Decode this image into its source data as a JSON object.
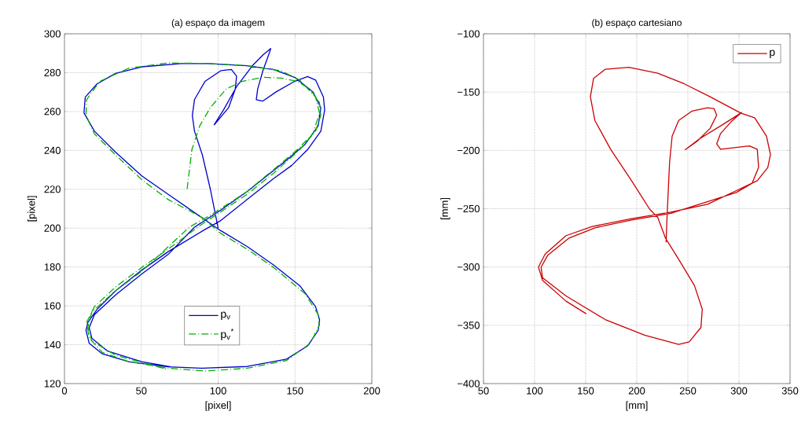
{
  "chart_data": [
    {
      "type": "line",
      "title": "(a) espaço da imagem",
      "xlabel": "[pixel]",
      "ylabel": "[pixel]",
      "xlim": [
        0,
        200
      ],
      "ylim": [
        120,
        300
      ],
      "xticks": [
        0,
        50,
        100,
        150,
        200
      ],
      "yticks": [
        120,
        140,
        160,
        180,
        200,
        220,
        240,
        260,
        280,
        300
      ],
      "grid": true,
      "legend": "bottom",
      "series": [
        {
          "name": "p$_{v}$",
          "color": "#0000cc",
          "line_style": "solid",
          "x": [
            100,
            94.9,
            89.7,
            84.6,
            83.2,
            84.6,
            91.4,
            101.7,
            108.6,
            112,
            111.1,
            106.8,
            98.3,
            97.4,
            103.4,
            112,
            122.3,
            129.1,
            134.2,
            133.4,
            129.1,
            125.7,
            124.8,
            129.1,
            137.7,
            149.7,
            158.2,
            163.4,
            168.5,
            169.3,
            166.8,
            158.2,
            147.9,
            136,
            118.8,
            101.7,
            89.7,
            67.5,
            50.3,
            33.2,
            21.2,
            15.2,
            14,
            16.1,
            24.7,
            41.8,
            67.5,
            89.7,
            118.8,
            144.5,
            158.2,
            165.1,
            166,
            163.4,
            153.1,
            136,
            118.8,
            101.7,
            90.6,
            67.5,
            50.3,
            33.2,
            19.5,
            12.7,
            13.5,
            21.2,
            33.2,
            50.3,
            76,
            93.2,
            118.8,
            136,
            149.7,
            161.7,
            166.8,
            165.1,
            156.5,
            144.5,
            118.8,
            101.7,
            84.6,
            67.5,
            50.3,
            33.2,
            19.5,
            16.1,
            17.8,
            28.1,
            50.3,
            69.2
          ],
          "values": [
            200,
            220.1,
            237.7,
            249.9,
            258,
            266.1,
            275.5,
            281,
            281.6,
            278.2,
            271.5,
            262,
            253.9,
            253.2,
            260.7,
            272.8,
            283.6,
            289.1,
            292.4,
            290.4,
            281,
            271.5,
            266.1,
            265.4,
            270.1,
            275.5,
            278,
            276.2,
            267.4,
            260.7,
            249.9,
            240.4,
            232.3,
            225.5,
            214.7,
            203.9,
            198.5,
            187.9,
            178.4,
            167.7,
            158.2,
            151.5,
            147.4,
            140.7,
            135.3,
            131.3,
            128.6,
            127.9,
            128.8,
            132.6,
            139.4,
            147.4,
            152.8,
            159.6,
            170.4,
            181.1,
            190.6,
            198.7,
            204.7,
            217.4,
            226.9,
            239.1,
            249.9,
            259.3,
            267.4,
            274.2,
            279.6,
            283,
            284.7,
            284.7,
            283.6,
            281.6,
            277.6,
            270.1,
            262,
            252.6,
            243.1,
            235,
            218.8,
            209.3,
            200.5,
            186.5,
            176.4,
            165.6,
            155.5,
            148.8,
            143.4,
            136.7,
            131.3,
            128.6
          ]
        },
        {
          "name": "p$_{v}$$^{*}$",
          "color": "#00b000",
          "line_style": "dashdot",
          "x": [
            79.8,
            82.9,
            88,
            94.9,
            105.1,
            115.4,
            129.1,
            141.1,
            151.4,
            159.9,
            165.9,
            166.8,
            163.4,
            153.1,
            136,
            118.8,
            98.3,
            88,
            67.5,
            50.3,
            33.2,
            19.5,
            14.4,
            16.1,
            24.7,
            41.8,
            67.5,
            91.4,
            118.8,
            144.5,
            159.9,
            165.9,
            165.1,
            156.5,
            136,
            118.8,
            101.7,
            89.7,
            67.5,
            50.3,
            33.2,
            19.5,
            14,
            14.4,
            22.9,
            41.8,
            67.5,
            93.2,
            118.8,
            141.1,
            153.1,
            163.4,
            165.9,
            161.7,
            149.7,
            118.8,
            94.9,
            81.2,
            50.3,
            33.2,
            17.8,
            15.2,
            17.8,
            33.2,
            67.5
          ],
          "values": [
            220.1,
            240.4,
            252.6,
            262,
            271.5,
            275.5,
            277.6,
            277.2,
            275.5,
            271.5,
            264.7,
            258,
            249.9,
            240.4,
            228.2,
            217.4,
            206.6,
            201.2,
            189.2,
            179.8,
            169.7,
            159.6,
            151.5,
            143.4,
            136,
            131.3,
            127.9,
            126.5,
            127.9,
            131.9,
            140.7,
            150.1,
            155.5,
            166.3,
            179.8,
            189.2,
            197.3,
            205.4,
            214.7,
            224.9,
            237.7,
            248.5,
            258,
            266.1,
            275.5,
            282.3,
            285,
            284.7,
            283.6,
            280.9,
            276.2,
            267.4,
            259.3,
            248.5,
            239.1,
            218.8,
            206.6,
            200.5,
            177.8,
            167.7,
            156.9,
            148.8,
            142,
            134.6,
            127.2
          ]
        }
      ]
    },
    {
      "type": "line",
      "title": "(b) espaço cartesiano",
      "xlabel": "[mm]",
      "ylabel": "[mm]",
      "xlim": [
        50,
        350
      ],
      "ylim": [
        -400,
        -100
      ],
      "xticks": [
        50,
        100,
        150,
        200,
        250,
        300,
        350
      ],
      "yticks": [
        {
          "value": -400,
          "label": "−400"
        },
        {
          "value": -350,
          "label": "−350"
        },
        {
          "value": -300,
          "label": "−300"
        },
        {
          "value": -250,
          "label": "−250"
        },
        {
          "value": -200,
          "label": "−200"
        },
        {
          "value": -150,
          "label": "−150"
        },
        {
          "value": -100,
          "label": "−100"
        }
      ],
      "grid": true,
      "legend": "top right",
      "series": [
        {
          "name": "p",
          "color": "#cc0000",
          "line_style": "solid",
          "x": [
            150.5,
            130.8,
            107.7,
            103.8,
            110.3,
            130.8,
            156.4,
            194.9,
            233.3,
            269.2,
            297.4,
            317.9,
            328.2,
            330.8,
            326.9,
            315.4,
            301.8,
            271.8,
            246.2,
            220.5,
            192.3,
            169.2,
            157.7,
            154.6,
            159,
            174.4,
            194.9,
            212.8,
            220.5,
            228.2,
            241,
            256.4,
            264.1,
            262.8,
            251.3,
            241,
            207.7,
            169.2,
            130.8,
            107.7,
            106.4,
            112.8,
            133.3,
            159,
            194.9,
            233.3,
            297.4,
            312.8,
            319.2,
            317.9,
            310.3,
            282,
            278.2,
            282,
            292.3,
            302.6,
            284.6,
            261.5,
            247.4,
            259,
            271.8,
            278.2,
            275.6,
            269.2,
            253.8,
            241,
            234.6,
            232.1,
            230.3,
            229.5,
            228.7
          ],
          "values": [
            -340.1,
            -329.3,
            -311.3,
            -300.1,
            -288.9,
            -273.1,
            -265.3,
            -258.5,
            -252.9,
            -246.2,
            -234.5,
            -226,
            -214.7,
            -203.5,
            -187.8,
            -172,
            -168,
            -154,
            -142.8,
            -133.8,
            -128.7,
            -130.4,
            -138.3,
            -154,
            -174.3,
            -199,
            -226,
            -250.7,
            -257.4,
            -275.4,
            -293.4,
            -315.8,
            -336.1,
            -351.8,
            -364.2,
            -366.4,
            -358.5,
            -345.1,
            -324.8,
            -309.1,
            -300.1,
            -290,
            -275.4,
            -266.4,
            -259.7,
            -254,
            -236.1,
            -228.2,
            -214.7,
            -199,
            -196.1,
            -199,
            -194.4,
            -185.5,
            -175.4,
            -167.5,
            -177.6,
            -190,
            -199.4,
            -192.2,
            -181,
            -169.8,
            -164.2,
            -163.5,
            -166.4,
            -174.3,
            -187.8,
            -210.2,
            -244,
            -259.7,
            -278.8
          ]
        }
      ]
    }
  ]
}
